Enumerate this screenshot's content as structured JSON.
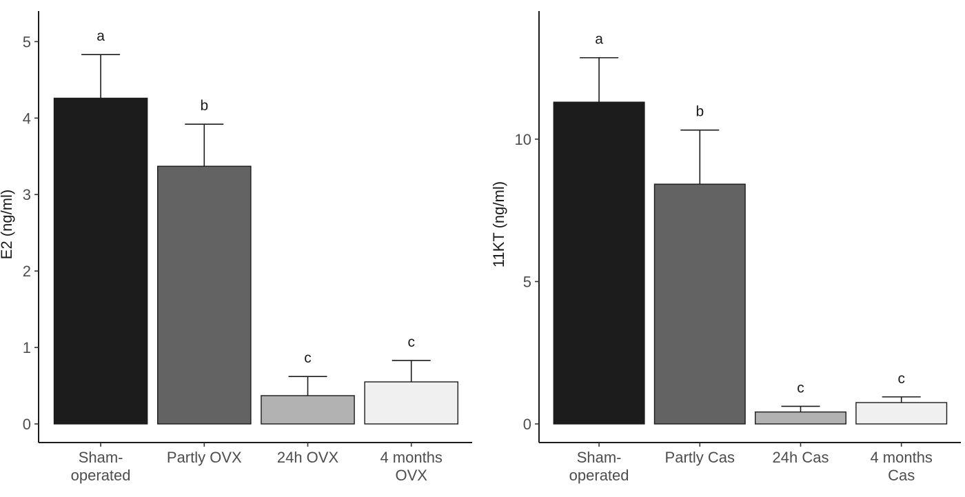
{
  "chart_data": [
    {
      "type": "bar",
      "title": "",
      "xlabel": "",
      "ylabel": "E2 (ng/ml)",
      "ylim": [
        0,
        5.4
      ],
      "yticks": [
        0,
        1,
        2,
        3,
        4,
        5
      ],
      "grid": false,
      "legend": "none",
      "categories": [
        [
          "Sham-",
          "operated"
        ],
        [
          "Partly OVX"
        ],
        [
          "24h OVX"
        ],
        [
          "4 months",
          "OVX"
        ]
      ],
      "values": [
        4.26,
        3.37,
        0.37,
        0.55
      ],
      "errors": [
        0.57,
        0.55,
        0.25,
        0.28
      ],
      "annotations": [
        "a",
        "b",
        "c",
        "c"
      ],
      "colors": [
        "#1c1c1c",
        "#636363",
        "#b2b2b2",
        "#f0f0f0"
      ]
    },
    {
      "type": "bar",
      "title": "",
      "xlabel": "",
      "ylabel": "11KT (ng/ml)",
      "ylim": [
        0,
        14.5
      ],
      "yticks": [
        0,
        5,
        10
      ],
      "grid": false,
      "legend": "none",
      "categories": [
        [
          "Sham-",
          "operated"
        ],
        [
          "Partly Cas"
        ],
        [
          "24h Cas"
        ],
        [
          "4 months",
          "Cas"
        ]
      ],
      "values": [
        11.3,
        8.42,
        0.42,
        0.75
      ],
      "errors": [
        1.56,
        1.9,
        0.2,
        0.2
      ],
      "annotations": [
        "a",
        "b",
        "c",
        "c"
      ],
      "colors": [
        "#1c1c1c",
        "#636363",
        "#b2b2b2",
        "#f0f0f0"
      ]
    }
  ]
}
